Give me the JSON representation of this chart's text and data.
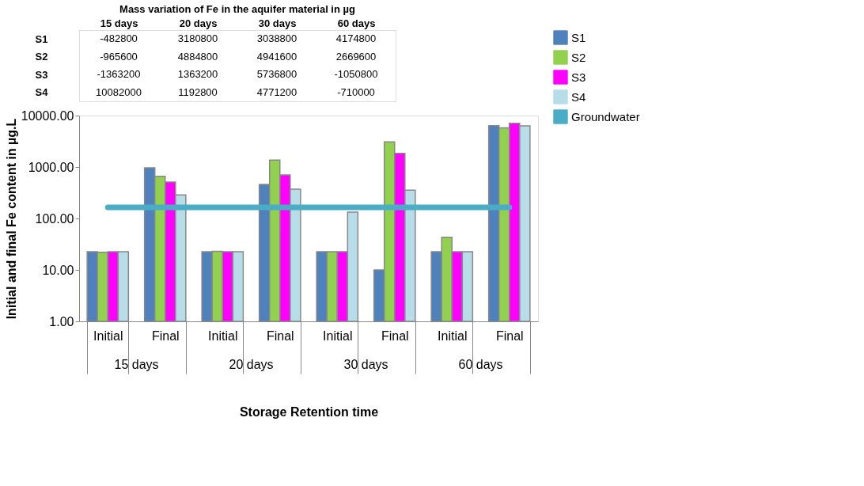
{
  "chart_data": [
    {
      "type": "heatmap",
      "data_labels": true,
      "title": "Mass variation of Fe in the aquifer material in µg",
      "categories": [
        "15 days",
        "20 days",
        "30 days",
        "60 days"
      ],
      "y_categories": [
        "S1",
        "S2",
        "S3",
        "S4"
      ],
      "cells": [
        [
          -482800,
          3180800,
          3038800,
          4174800
        ],
        [
          -965600,
          4884800,
          4941600,
          2669600
        ],
        [
          -1363200,
          1363200,
          5736800,
          -1050800
        ],
        [
          10082000,
          1192800,
          4771200,
          -710000
        ]
      ]
    },
    {
      "type": "bar",
      "xlabel": "Storage Retention time",
      "ylabel": "Initial and final Fe content in µg.L",
      "log": true,
      "grid": false,
      "legend": "right",
      "categories": [
        "Initial",
        "Final",
        "Initial",
        "Final",
        "Initial",
        "Final",
        "Initial",
        "Final"
      ],
      "annotations": [
        "15 days",
        "20 days",
        "30 days",
        "60 days"
      ],
      "ylim": [
        1,
        10000
      ],
      "yticks": [
        {
          "value": 1,
          "label": "1.00"
        },
        {
          "value": 10,
          "label": "10.00"
        },
        {
          "value": 100,
          "label": "100.00"
        },
        {
          "value": 1000,
          "label": "1000.00"
        },
        {
          "value": 10000,
          "label": "10000.00"
        }
      ],
      "series": [
        {
          "name": "S1",
          "color": "#4f81bd",
          "values": [
            22.6,
            962,
            22.6,
            458,
            22.6,
            10,
            22.6,
            6340
          ]
        },
        {
          "name": "S2",
          "color": "#92d050",
          "values": [
            22,
            660,
            23,
            1367,
            22.6,
            3070,
            43,
            5770
          ]
        },
        {
          "name": "S3",
          "color": "#ff00ff",
          "values": [
            22.6,
            512,
            22.6,
            702,
            22.6,
            1850,
            22.6,
            7100
          ]
        },
        {
          "name": "S4",
          "color": "#b7dde8",
          "values": [
            22.6,
            288,
            22.6,
            371,
            133,
            355,
            22.6,
            6300
          ]
        },
        {
          "name": "Groundwater",
          "type": "line",
          "color": "#4bacc6",
          "values": [
            164,
            164,
            164,
            164,
            164,
            164,
            164,
            164
          ]
        }
      ]
    }
  ]
}
